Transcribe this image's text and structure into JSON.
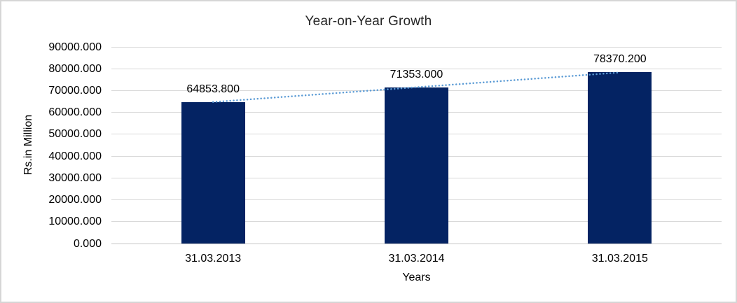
{
  "chart_data": {
    "type": "bar",
    "title": "Year-on-Year Growth",
    "categories": [
      "31.03.2013",
      "31.03.2014",
      "31.03.2015"
    ],
    "values": [
      64853.8,
      71353.0,
      78370.2
    ],
    "data_labels": [
      "64853.800",
      "71353.000",
      "78370.200"
    ],
    "xlabel": "Years",
    "ylabel": "Rs.in Million",
    "ylim": [
      0,
      90000
    ],
    "ytick_step": 10000,
    "ytick_labels": [
      "90000.000",
      "80000.000",
      "70000.000",
      "60000.000",
      "50000.000",
      "40000.000",
      "30000.000",
      "20000.000",
      "10000.000",
      "0.000"
    ],
    "grid": true,
    "legend": false,
    "trendline": {
      "type": "linear",
      "style": "dotted",
      "color": "#5B9BD5"
    },
    "colors": {
      "bar": "#042363",
      "gridline": "#D9D9D9",
      "axis_line": "#C6C6C6",
      "text": "#000000",
      "title": "#262626",
      "frame": "#D6D6D6",
      "background": "#FFFFFF"
    }
  }
}
